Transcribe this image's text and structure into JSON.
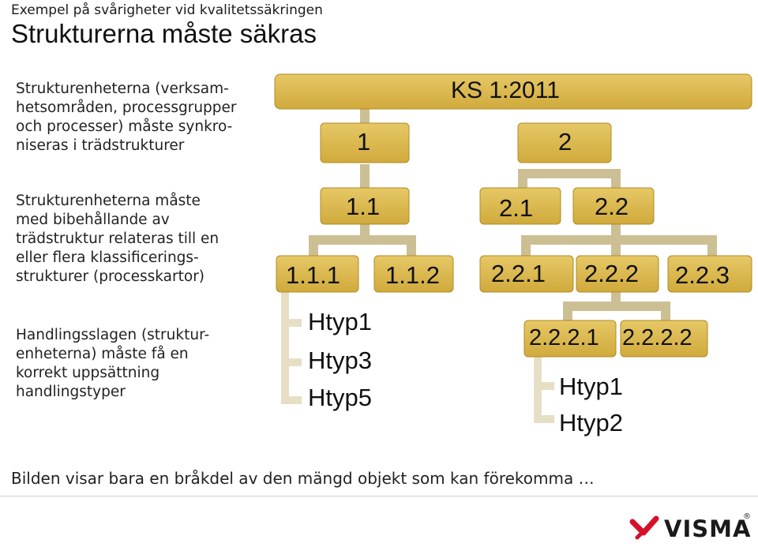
{
  "header": {
    "subtitle": "Exempel på svårigheter vid kvalitetssäkringen",
    "title": "Strukturerna måste säkras"
  },
  "left_text": [
    "Strukturenheterna (verksam-\nhetsområden, processgrupper\noch processer) måste synkro-\nniseras i trädstrukturer",
    "Strukturenheterna  måste\nmed bibehållande av\nträdstruktur relateras till en\neller flera klassificerings-\nstrukturer (processkartor)",
    "Handlingsslagen (struktur-\nenheterna) måste få en\nkorrekt uppsättning\nhandlingstyper"
  ],
  "tree": {
    "root": "KS 1:2011",
    "n1": "1",
    "n2": "2",
    "n1_1": "1.1",
    "n2_1": "2.1",
    "n2_2": "2.2",
    "n1_1_1": "1.1.1",
    "n1_1_2": "1.1.2",
    "n2_2_1": "2.2.1",
    "n2_2_2": "2.2.2",
    "n2_2_3": "2.2.3",
    "n2_2_2_1": "2.2.2.1",
    "n2_2_2_2": "2.2.2.2",
    "htyp_a": [
      "Htyp1",
      "Htyp3",
      "Htyp5"
    ],
    "htyp_b": [
      "Htyp1",
      "Htyp2"
    ]
  },
  "footer": "Bilden visar bara en bråkdel av den mängd objekt som kan förekomma …",
  "logo": {
    "text": "VISMA",
    "registered": "®",
    "mark_color": "#d6102a"
  },
  "colors": {
    "box_fill": "#dcb84f",
    "box_edge": "#b08b24",
    "connector": "#cdbf94",
    "leaf_connector": "#e6dfc6"
  }
}
